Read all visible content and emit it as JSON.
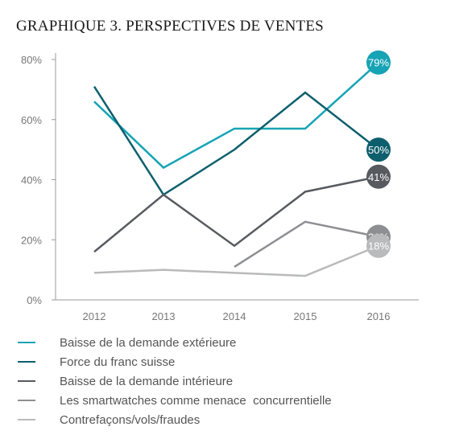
{
  "chart_data": {
    "type": "line",
    "title": "GRAPHIQUE 3. PERSPECTIVES DE VENTES",
    "xlabel": "",
    "ylabel": "",
    "x": [
      "2012",
      "2013",
      "2014",
      "2015",
      "2016"
    ],
    "ylim": [
      0,
      80
    ],
    "yticks": [
      "0%",
      "20%",
      "40%",
      "60%",
      "80%"
    ],
    "grid": false,
    "legend_position": "bottom",
    "series": [
      {
        "name": "Baisse de la demande extérieure",
        "color": "#16a3b5",
        "values": [
          66,
          44,
          57,
          57,
          79
        ],
        "end_label": "79%"
      },
      {
        "name": "Force du franc suisse",
        "color": "#0e5f6d",
        "values": [
          71,
          35,
          50,
          69,
          50
        ],
        "end_label": "50%"
      },
      {
        "name": "Baisse de la demande intérieure",
        "color": "#575a5f",
        "values": [
          16,
          35,
          18,
          36,
          41
        ],
        "end_label": "41%"
      },
      {
        "name": "Les smartwatches comme menace  concurrentielle",
        "color": "#8e8f92",
        "values": [
          null,
          null,
          11,
          26,
          21
        ],
        "end_label": "21%"
      },
      {
        "name": "Contrefaçons/vols/fraudes",
        "color": "#b9babb",
        "values": [
          9,
          10,
          9,
          8,
          18
        ],
        "end_label": "18%"
      }
    ]
  }
}
